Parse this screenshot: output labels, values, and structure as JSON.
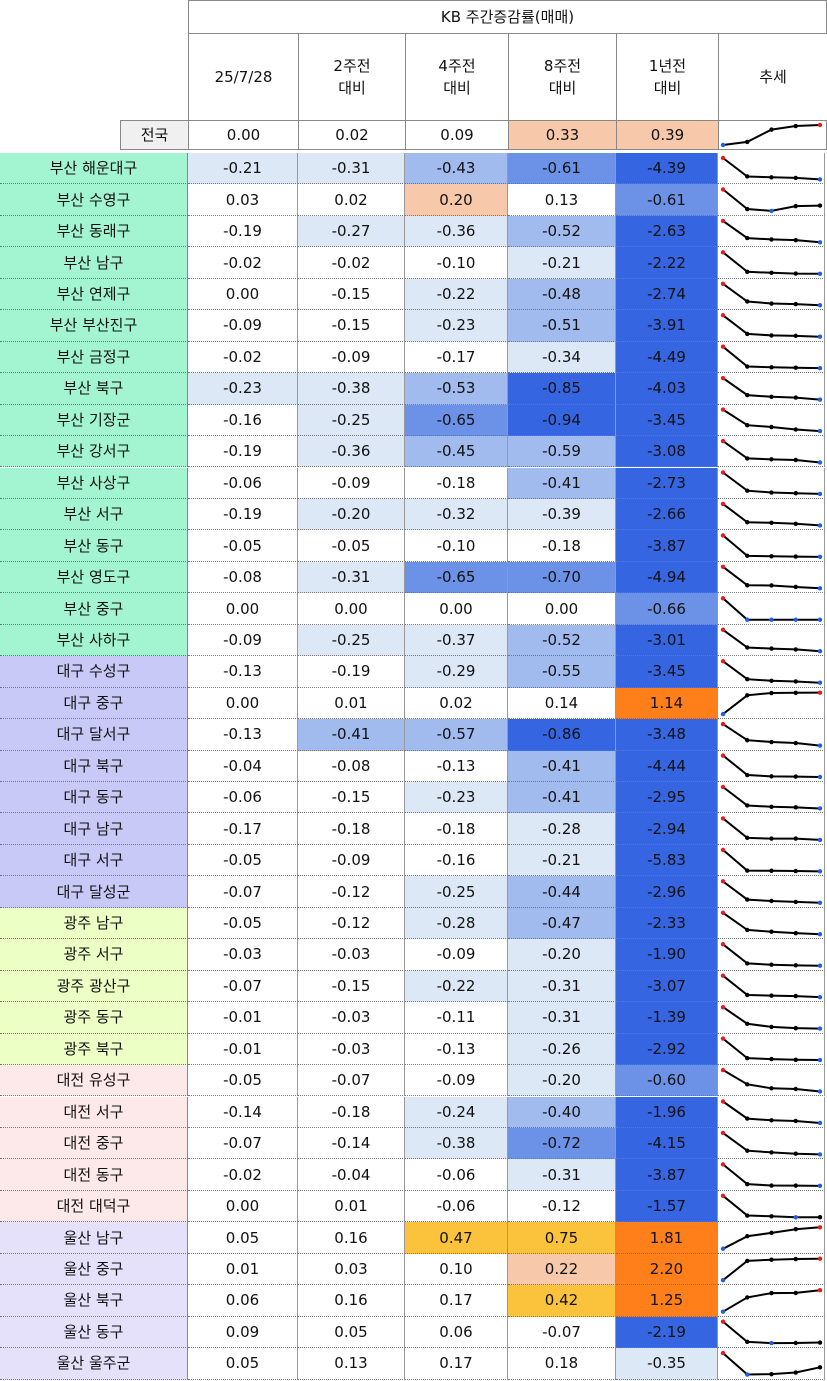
{
  "header": {
    "title": "KB 주간증감률(매매)",
    "columns": [
      [
        "25/7/28"
      ],
      [
        "2주전",
        "대비"
      ],
      [
        "4주전",
        "대비"
      ],
      [
        "8주전",
        "대비"
      ],
      [
        "1년전",
        "대비"
      ],
      [
        "추세"
      ]
    ]
  },
  "table": {
    "rows": [
      {
        "name": "전국",
        "color": "#f0f0f0",
        "values": [
          "0.00",
          "0.02",
          "0.09",
          "0.33",
          "0.39"
        ]
      },
      {
        "name": "부산 해운대구",
        "color": "#a2f5d0",
        "values": [
          "-0.21",
          "-0.31",
          "-0.43",
          "-0.61",
          "-4.39"
        ]
      },
      {
        "name": "부산 수영구",
        "color": "#a2f5d0",
        "values": [
          "0.03",
          "0.02",
          "0.20",
          "0.13",
          "-0.61"
        ]
      },
      {
        "name": "부산 동래구",
        "color": "#a2f5d0",
        "values": [
          "-0.19",
          "-0.27",
          "-0.36",
          "-0.52",
          "-2.63"
        ]
      },
      {
        "name": "부산 남구",
        "color": "#a2f5d0",
        "values": [
          "-0.02",
          "-0.02",
          "-0.10",
          "-0.21",
          "-2.22"
        ]
      },
      {
        "name": "부산 연제구",
        "color": "#a2f5d0",
        "values": [
          "0.00",
          "-0.15",
          "-0.22",
          "-0.48",
          "-2.74"
        ]
      },
      {
        "name": "부산 부산진구",
        "color": "#a2f5d0",
        "values": [
          "-0.09",
          "-0.15",
          "-0.23",
          "-0.51",
          "-3.91"
        ]
      },
      {
        "name": "부산 금정구",
        "color": "#a2f5d0",
        "values": [
          "-0.02",
          "-0.09",
          "-0.17",
          "-0.34",
          "-4.49"
        ]
      },
      {
        "name": "부산 북구",
        "color": "#a2f5d0",
        "values": [
          "-0.23",
          "-0.38",
          "-0.53",
          "-0.85",
          "-4.03"
        ]
      },
      {
        "name": "부산 기장군",
        "color": "#a2f5d0",
        "values": [
          "-0.16",
          "-0.25",
          "-0.65",
          "-0.94",
          "-3.45"
        ]
      },
      {
        "name": "부산 강서구",
        "color": "#a2f5d0",
        "values": [
          "-0.19",
          "-0.36",
          "-0.45",
          "-0.59",
          "-3.08"
        ]
      },
      {
        "name": "부산 사상구",
        "color": "#a2f5d0",
        "values": [
          "-0.06",
          "-0.09",
          "-0.18",
          "-0.41",
          "-2.73"
        ]
      },
      {
        "name": "부산 서구",
        "color": "#a2f5d0",
        "values": [
          "-0.19",
          "-0.20",
          "-0.32",
          "-0.39",
          "-2.66"
        ]
      },
      {
        "name": "부산 동구",
        "color": "#a2f5d0",
        "values": [
          "-0.05",
          "-0.05",
          "-0.10",
          "-0.18",
          "-3.87"
        ]
      },
      {
        "name": "부산 영도구",
        "color": "#a2f5d0",
        "values": [
          "-0.08",
          "-0.31",
          "-0.65",
          "-0.70",
          "-4.94"
        ]
      },
      {
        "name": "부산 중구",
        "color": "#a2f5d0",
        "values": [
          "0.00",
          "0.00",
          "0.00",
          "0.00",
          "-0.66"
        ]
      },
      {
        "name": "부산 사하구",
        "color": "#a2f5d0",
        "values": [
          "-0.09",
          "-0.25",
          "-0.37",
          "-0.52",
          "-3.01"
        ]
      },
      {
        "name": "대구 수성구",
        "color": "#c9c9f7",
        "values": [
          "-0.13",
          "-0.19",
          "-0.29",
          "-0.55",
          "-3.45"
        ]
      },
      {
        "name": "대구 중구",
        "color": "#c9c9f7",
        "values": [
          "0.00",
          "0.01",
          "0.02",
          "0.14",
          "1.14"
        ]
      },
      {
        "name": "대구 달서구",
        "color": "#c9c9f7",
        "values": [
          "-0.13",
          "-0.41",
          "-0.57",
          "-0.86",
          "-3.48"
        ]
      },
      {
        "name": "대구 북구",
        "color": "#c9c9f7",
        "values": [
          "-0.04",
          "-0.08",
          "-0.13",
          "-0.41",
          "-4.44"
        ]
      },
      {
        "name": "대구 동구",
        "color": "#c9c9f7",
        "values": [
          "-0.06",
          "-0.15",
          "-0.23",
          "-0.41",
          "-2.95"
        ]
      },
      {
        "name": "대구 남구",
        "color": "#c9c9f7",
        "values": [
          "-0.17",
          "-0.18",
          "-0.18",
          "-0.28",
          "-2.94"
        ]
      },
      {
        "name": "대구 서구",
        "color": "#c9c9f7",
        "values": [
          "-0.05",
          "-0.09",
          "-0.16",
          "-0.21",
          "-5.83"
        ]
      },
      {
        "name": "대구 달성군",
        "color": "#c9c9f7",
        "values": [
          "-0.07",
          "-0.12",
          "-0.25",
          "-0.44",
          "-2.96"
        ]
      },
      {
        "name": "광주 남구",
        "color": "#ecffc4",
        "values": [
          "-0.05",
          "-0.12",
          "-0.28",
          "-0.47",
          "-2.33"
        ]
      },
      {
        "name": "광주 서구",
        "color": "#ecffc4",
        "values": [
          "-0.03",
          "-0.03",
          "-0.09",
          "-0.20",
          "-1.90"
        ]
      },
      {
        "name": "광주 광산구",
        "color": "#ecffc4",
        "values": [
          "-0.07",
          "-0.15",
          "-0.22",
          "-0.31",
          "-3.07"
        ]
      },
      {
        "name": "광주 동구",
        "color": "#ecffc4",
        "values": [
          "-0.01",
          "-0.03",
          "-0.11",
          "-0.31",
          "-1.39"
        ]
      },
      {
        "name": "광주 북구",
        "color": "#ecffc4",
        "values": [
          "-0.01",
          "-0.03",
          "-0.13",
          "-0.26",
          "-2.92"
        ]
      },
      {
        "name": "대전 유성구",
        "color": "#fde9e9",
        "values": [
          "-0.05",
          "-0.07",
          "-0.09",
          "-0.20",
          "-0.60"
        ]
      },
      {
        "name": "대전 서구",
        "color": "#fde9e9",
        "values": [
          "-0.14",
          "-0.18",
          "-0.24",
          "-0.40",
          "-1.96"
        ]
      },
      {
        "name": "대전 중구",
        "color": "#fde9e9",
        "values": [
          "-0.07",
          "-0.14",
          "-0.38",
          "-0.72",
          "-4.15"
        ]
      },
      {
        "name": "대전 동구",
        "color": "#fde9e9",
        "values": [
          "-0.02",
          "-0.04",
          "-0.06",
          "-0.31",
          "-3.87"
        ]
      },
      {
        "name": "대전 대덕구",
        "color": "#fde9e9",
        "values": [
          "0.00",
          "0.01",
          "-0.06",
          "-0.12",
          "-1.57"
        ]
      },
      {
        "name": "울산 남구",
        "color": "#e5e1fb",
        "values": [
          "0.05",
          "0.16",
          "0.47",
          "0.75",
          "1.81"
        ]
      },
      {
        "name": "울산 중구",
        "color": "#e5e1fb",
        "values": [
          "0.01",
          "0.03",
          "0.10",
          "0.22",
          "2.20"
        ]
      },
      {
        "name": "울산 북구",
        "color": "#e5e1fb",
        "values": [
          "0.06",
          "0.16",
          "0.17",
          "0.42",
          "1.25"
        ]
      },
      {
        "name": "울산 동구",
        "color": "#e5e1fb",
        "values": [
          "0.09",
          "0.05",
          "0.06",
          "-0.07",
          "-2.19"
        ]
      },
      {
        "name": "울산 울주군",
        "color": "#e5e1fb",
        "values": [
          "0.05",
          "0.13",
          "0.17",
          "0.18",
          "-0.35"
        ]
      }
    ]
  }
}
